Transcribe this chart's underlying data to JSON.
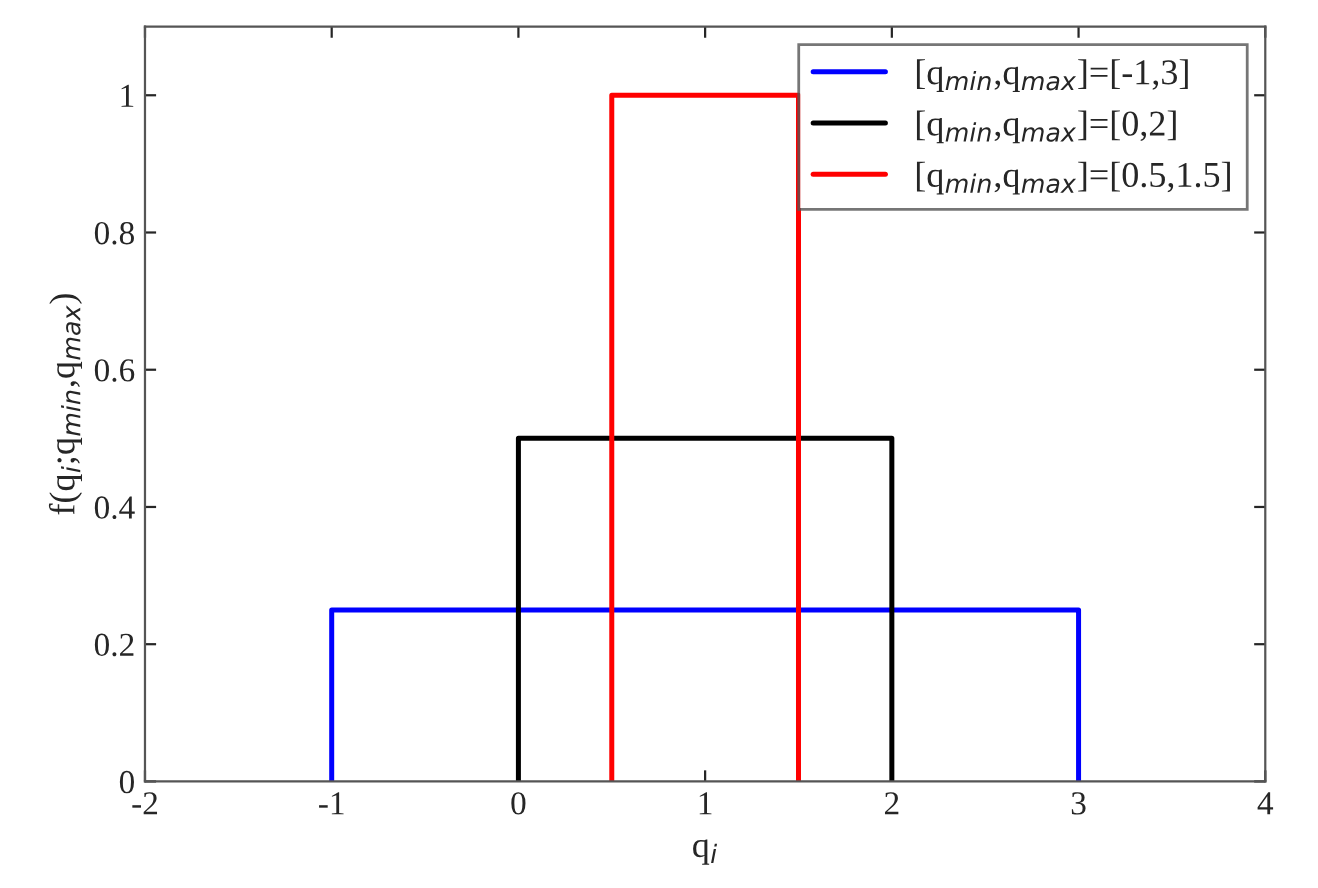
{
  "chart_data": {
    "type": "line",
    "xlabel": "q$_{i}$",
    "ylabel": "f(q$_{i}$;q$_{min}$,q$_{max}$)",
    "series": [
      {
        "name": "[q$_{min}$,q$_{max}$]=[-1,3]",
        "color": "#0000ff",
        "x": [
          -1,
          -1,
          3,
          3
        ],
        "values": [
          0,
          0.25,
          0.25,
          0
        ]
      },
      {
        "name": "[q$_{min}$,q$_{max}$]=[0,2]",
        "color": "#000000",
        "x": [
          0,
          0,
          2,
          2
        ],
        "values": [
          0,
          0.5,
          0.5,
          0
        ]
      },
      {
        "name": "[q$_{min}$,q$_{max}$]=[0.5,1.5]",
        "color": "#ff0000",
        "x": [
          0.5,
          0.5,
          1.5,
          1.5
        ],
        "values": [
          0,
          1,
          1,
          0
        ]
      }
    ],
    "xlim": [
      -2,
      4
    ],
    "ylim": [
      0,
      1.1
    ],
    "xticks": [
      -2,
      -1,
      0,
      1,
      2,
      3,
      4
    ],
    "yticks": [
      0,
      0.2,
      0.4,
      0.6,
      0.8,
      1
    ],
    "grid": false,
    "legend": "top right",
    "marker": "none",
    "line_style": "solid"
  }
}
